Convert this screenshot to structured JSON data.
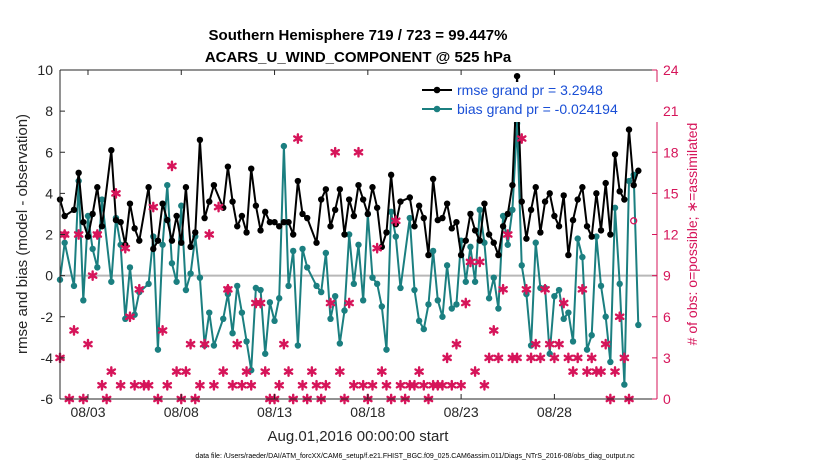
{
  "chart_data": {
    "type": "line",
    "title": "Southern Hemisphere 719 / 723 = 99.447%",
    "subtitle": "ACARS_U_WIND_COMPONENT @ 525 hPa",
    "xlabel": "Aug.01,2016 00:00:00 start",
    "ylabel": "rmse and bias (model - observation)",
    "ylabel_right": "# of obs: o=possible; ∗=assimilated",
    "xlim": [
      1.5,
      33.5
    ],
    "ylim": [
      -6,
      10
    ],
    "ylim_right": [
      0,
      24
    ],
    "yticks": [
      -6,
      -4,
      -2,
      0,
      2,
      4,
      6,
      8,
      10
    ],
    "yticks_right": [
      0,
      3,
      6,
      9,
      12,
      15,
      18,
      21,
      24
    ],
    "x_ticks": [
      {
        "x": 3,
        "label": "08/03"
      },
      {
        "x": 8,
        "label": "08/08"
      },
      {
        "x": 13,
        "label": "08/13"
      },
      {
        "x": 18,
        "label": "08/18"
      },
      {
        "x": 23,
        "label": "08/23"
      },
      {
        "x": 28,
        "label": "08/28"
      }
    ],
    "series": [
      {
        "name": "rmse grand pr = 3.2948",
        "color": "#000000",
        "x": [
          1.5,
          1.75,
          2.25,
          2.5,
          2.75,
          3.0,
          3.25,
          3.5,
          3.75,
          4.25,
          4.5,
          4.75,
          5.0,
          5.25,
          5.5,
          5.75,
          6.25,
          6.5,
          6.75,
          7.0,
          7.25,
          7.5,
          7.75,
          8.0,
          8.25,
          8.5,
          8.75,
          9.0,
          9.25,
          9.5,
          9.75,
          10.25,
          10.5,
          10.75,
          11.0,
          11.25,
          11.5,
          11.75,
          12.0,
          12.25,
          12.5,
          12.75,
          13.0,
          13.25,
          13.5,
          13.75,
          14.0,
          14.25,
          14.5,
          14.75,
          15.25,
          15.5,
          15.75,
          16.0,
          16.25,
          16.5,
          16.75,
          17.0,
          17.25,
          17.5,
          17.75,
          18.0,
          18.25,
          18.5,
          18.75,
          19.0,
          19.25,
          19.5,
          19.75,
          20.25,
          20.5,
          20.75,
          21.0,
          21.25,
          21.5,
          21.75,
          22.0,
          22.25,
          22.5,
          22.75,
          23.0,
          23.25,
          23.5,
          23.75,
          24.0,
          24.25,
          24.5,
          24.75,
          25.0,
          25.25,
          25.5,
          25.75,
          26.0,
          26.25,
          26.5,
          26.75,
          27.0,
          27.25,
          27.5,
          27.75,
          28.0,
          28.25,
          28.5,
          28.75,
          29.0,
          29.25,
          29.5,
          29.75,
          30.0,
          30.25,
          30.5,
          30.75,
          31.0,
          31.25,
          31.5,
          31.75,
          32.0,
          32.25,
          32.5
        ],
        "values": [
          3.7,
          2.9,
          3.2,
          5.0,
          2.6,
          1.9,
          3.0,
          4.3,
          2.4,
          6.1,
          2.7,
          2.6,
          1.5,
          3.5,
          2.3,
          1.7,
          4.3,
          1.3,
          1.7,
          3.5,
          2.7,
          1.7,
          2.9,
          1.6,
          4.3,
          1.4,
          2.1,
          6.6,
          2.8,
          3.6,
          4.4,
          3.3,
          5.3,
          3.6,
          2.4,
          2.9,
          2.1,
          5.2,
          3.4,
          2.2,
          3.1,
          2.6,
          2.6,
          2.4,
          2.6,
          2.6,
          2.0,
          4.6,
          3.0,
          2.8,
          1.6,
          3.7,
          4.2,
          2.4,
          3.2,
          4.2,
          2.0,
          3.7,
          2.9,
          4.4,
          3.7,
          3.0,
          4.3,
          3.3,
          1.4,
          2.1,
          4.9,
          2.5,
          3.6,
          3.8,
          2.4,
          3.4,
          2.8,
          1.0,
          4.7,
          2.7,
          2.8,
          3.5,
          2.3,
          2.6,
          1.0,
          1.7,
          3.0,
          2.2,
          1.7,
          3.5,
          2.0,
          1.6,
          1.0,
          2.4,
          3.0,
          4.4,
          9.7,
          3.6,
          1.8,
          3.2,
          4.3,
          2.1,
          3.6,
          4.0,
          2.9,
          2.4,
          3.9,
          1.0,
          2.7,
          3.7,
          4.3,
          2.4,
          1.9,
          4.0,
          2.2,
          4.5,
          2.0,
          5.9,
          4.1,
          3.7,
          7.1,
          4.4,
          5.1
        ]
      },
      {
        "name": "bias grand pr = -0.024194",
        "color": "#1b7f80",
        "x": [
          1.5,
          1.75,
          2.25,
          2.5,
          2.75,
          3.0,
          3.25,
          3.5,
          3.75,
          4.25,
          4.5,
          4.75,
          5.0,
          5.25,
          5.5,
          5.75,
          6.25,
          6.5,
          6.75,
          7.0,
          7.25,
          7.5,
          7.75,
          8.0,
          8.25,
          8.5,
          8.75,
          9.0,
          9.25,
          9.5,
          9.75,
          10.25,
          10.5,
          10.75,
          11.0,
          11.25,
          11.5,
          11.75,
          12.0,
          12.25,
          12.5,
          12.75,
          13.0,
          13.25,
          13.5,
          13.75,
          14.0,
          14.25,
          14.5,
          14.75,
          15.25,
          15.5,
          15.75,
          16.0,
          16.25,
          16.5,
          16.75,
          17.0,
          17.25,
          17.5,
          17.75,
          18.0,
          18.25,
          18.5,
          18.75,
          19.0,
          19.25,
          19.5,
          19.75,
          20.25,
          20.5,
          20.75,
          21.0,
          21.25,
          21.5,
          21.75,
          22.0,
          22.25,
          22.5,
          22.75,
          23.0,
          23.25,
          23.5,
          23.75,
          24.0,
          24.25,
          24.5,
          24.75,
          25.0,
          25.25,
          25.5,
          25.75,
          26.0,
          26.25,
          26.5,
          26.75,
          27.0,
          27.25,
          27.5,
          27.75,
          28.0,
          28.25,
          28.5,
          28.75,
          29.0,
          29.25,
          29.5,
          29.75,
          30.0,
          30.25,
          30.5,
          30.75,
          31.0,
          31.25,
          31.5,
          31.75,
          32.0,
          32.25,
          32.5
        ],
        "values": [
          -0.2,
          1.6,
          -0.5,
          4.6,
          -1.2,
          2.9,
          1.3,
          0.4,
          3.7,
          -0.3,
          2.8,
          1.5,
          -2.1,
          0.4,
          -1.9,
          -0.8,
          -0.4,
          1.9,
          -3.6,
          1.5,
          4.4,
          0.6,
          -0.3,
          3.4,
          -0.7,
          0.1,
          1.9,
          -0.1,
          -3.4,
          -1.8,
          -3.4,
          -2.1,
          -0.9,
          -2.8,
          -0.5,
          -1.8,
          -3.2,
          -4.6,
          -0.6,
          -0.7,
          -3.8,
          -1.3,
          -2.2,
          -1.1,
          6.3,
          -0.5,
          1.2,
          -3.4,
          1.3,
          0.4,
          -0.5,
          -0.8,
          1.1,
          -2.1,
          -1.0,
          -3.3,
          -1.7,
          2.0,
          -0.4,
          1.5,
          -1.2,
          3.0,
          -0.1,
          -0.4,
          -1.5,
          -3.6,
          3.1,
          1.9,
          -0.6,
          2.8,
          -0.7,
          -2.2,
          -2.6,
          -1.4,
          1.2,
          -1.2,
          -2.0,
          0.5,
          -1.6,
          -1.4,
          1.7,
          -0.3,
          1.4,
          -0.3,
          3.2,
          1.6,
          -1.1,
          -0.1,
          -1.6,
          2.9,
          1.5,
          3.2,
          7.4,
          0.5,
          -0.9,
          -3.4,
          1.6,
          -0.6,
          -0.6,
          -3.8,
          -1.0,
          -0.7,
          -2.1,
          -1.8,
          -3.2,
          1.8,
          0.9,
          -3.6,
          -2.9,
          1.9,
          -0.5,
          -2.0,
          -4.2,
          3.3,
          -0.4,
          -5.3,
          4.6,
          4.9,
          -2.4
        ]
      }
    ],
    "obs_assimilated": {
      "name": "assimilated",
      "marker": "∗",
      "color": "#d6155a",
      "points": [
        [
          1.5,
          3
        ],
        [
          1.75,
          12
        ],
        [
          2.0,
          0
        ],
        [
          2.25,
          5
        ],
        [
          2.5,
          12
        ],
        [
          2.75,
          0
        ],
        [
          3.0,
          4
        ],
        [
          3.25,
          9
        ],
        [
          3.5,
          12
        ],
        [
          3.75,
          1
        ],
        [
          4.0,
          0
        ],
        [
          4.25,
          2
        ],
        [
          4.5,
          15
        ],
        [
          4.75,
          1
        ],
        [
          5.0,
          11
        ],
        [
          5.25,
          6
        ],
        [
          5.5,
          1
        ],
        [
          5.75,
          8
        ],
        [
          6.0,
          1
        ],
        [
          6.25,
          1
        ],
        [
          6.5,
          14
        ],
        [
          6.75,
          0
        ],
        [
          7.0,
          5
        ],
        [
          7.25,
          1
        ],
        [
          7.5,
          17
        ],
        [
          7.75,
          2
        ],
        [
          8.0,
          0
        ],
        [
          8.25,
          2
        ],
        [
          8.5,
          4
        ],
        [
          8.75,
          0
        ],
        [
          9.0,
          1
        ],
        [
          9.25,
          4
        ],
        [
          9.5,
          12
        ],
        [
          9.75,
          1
        ],
        [
          10.0,
          14
        ],
        [
          10.25,
          2
        ],
        [
          10.5,
          8
        ],
        [
          10.75,
          1
        ],
        [
          11.0,
          4
        ],
        [
          11.25,
          1
        ],
        [
          11.5,
          2
        ],
        [
          11.75,
          1
        ],
        [
          12.0,
          7
        ],
        [
          12.25,
          7
        ],
        [
          12.5,
          2
        ],
        [
          12.75,
          0
        ],
        [
          13.0,
          0
        ],
        [
          13.25,
          1
        ],
        [
          13.5,
          4
        ],
        [
          13.75,
          2
        ],
        [
          14.0,
          0
        ],
        [
          14.25,
          19
        ],
        [
          14.5,
          1
        ],
        [
          14.75,
          0
        ],
        [
          15.0,
          2
        ],
        [
          15.25,
          1
        ],
        [
          15.5,
          0
        ],
        [
          15.75,
          1
        ],
        [
          16.0,
          7
        ],
        [
          16.25,
          18
        ],
        [
          16.5,
          2
        ],
        [
          16.75,
          0
        ],
        [
          17.0,
          7
        ],
        [
          17.25,
          1
        ],
        [
          17.5,
          18
        ],
        [
          17.75,
          1
        ],
        [
          18.0,
          0
        ],
        [
          18.25,
          1
        ],
        [
          18.5,
          11
        ],
        [
          18.75,
          2
        ],
        [
          19.0,
          1
        ],
        [
          19.25,
          0
        ],
        [
          19.5,
          13
        ],
        [
          19.75,
          1
        ],
        [
          20.0,
          0
        ],
        [
          20.25,
          1
        ],
        [
          20.5,
          1
        ],
        [
          20.75,
          2
        ],
        [
          21.0,
          1
        ],
        [
          21.25,
          0
        ],
        [
          21.5,
          1
        ],
        [
          21.75,
          1
        ],
        [
          22.0,
          1
        ],
        [
          22.25,
          3
        ],
        [
          22.5,
          1
        ],
        [
          22.75,
          4
        ],
        [
          23.0,
          1
        ],
        [
          23.25,
          7
        ],
        [
          23.5,
          10
        ],
        [
          23.75,
          2
        ],
        [
          24.0,
          10
        ],
        [
          24.25,
          1
        ],
        [
          24.5,
          3
        ],
        [
          24.75,
          5
        ],
        [
          25.0,
          3
        ],
        [
          25.25,
          8
        ],
        [
          25.5,
          12
        ],
        [
          25.75,
          3
        ],
        [
          26.0,
          3
        ],
        [
          26.25,
          19
        ],
        [
          26.5,
          8
        ],
        [
          26.75,
          3
        ],
        [
          27.0,
          4
        ],
        [
          27.25,
          3
        ],
        [
          27.5,
          8
        ],
        [
          27.75,
          4
        ],
        [
          28.0,
          3
        ],
        [
          28.25,
          4
        ],
        [
          28.5,
          7
        ],
        [
          28.75,
          3
        ],
        [
          29.0,
          2
        ],
        [
          29.25,
          3
        ],
        [
          29.5,
          8
        ],
        [
          29.75,
          2
        ],
        [
          30.0,
          3
        ],
        [
          30.25,
          2
        ],
        [
          30.5,
          2
        ],
        [
          30.75,
          4
        ],
        [
          31.0,
          0
        ],
        [
          31.25,
          2
        ],
        [
          31.5,
          6
        ],
        [
          31.75,
          3
        ],
        [
          32.0,
          0
        ]
      ]
    },
    "obs_possible": {
      "name": "possible",
      "marker": "o",
      "color": "#d6155a",
      "points": [
        [
          1.75,
          12
        ],
        [
          3.5,
          12
        ],
        [
          10.5,
          8
        ],
        [
          32.25,
          13
        ]
      ]
    }
  },
  "footer": {
    "data_file": "data file: /Users/raeder/DAI/ATM_forcXX/CAM6_setup/f.e21.FHIST_BGC.f09_025.CAM6assim.011/Diags_NTrS_2016-08/obs_diag_output.nc"
  }
}
